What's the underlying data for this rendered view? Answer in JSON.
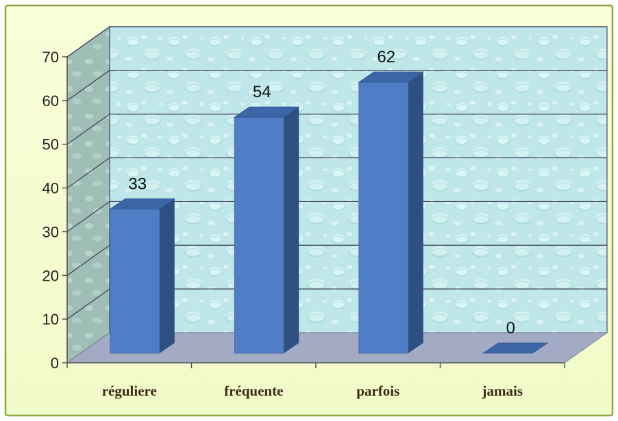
{
  "chart_data": {
    "type": "bar",
    "categories": [
      "réguliere",
      "fréquente",
      "parfois",
      "jamais"
    ],
    "values": [
      33,
      54,
      62,
      0
    ],
    "data_labels": [
      "33",
      "54",
      "62",
      "0"
    ],
    "title": "",
    "xlabel": "",
    "ylabel": "",
    "ylim": [
      0,
      70
    ],
    "yticks": [
      "0",
      "10",
      "20",
      "30",
      "40",
      "50",
      "60",
      "70"
    ],
    "grid": true,
    "legend": "none",
    "three_d": true
  },
  "colors": {
    "chart_area_bg": "#f6ffd6",
    "chart_area_border": "#8aa63a",
    "back_wall": "#bfe6e8",
    "side_wall": "#9fbfb6",
    "floor": "#a3aac4",
    "bar_front": "#4f7ec6",
    "bar_top": "#3b66a8",
    "bar_side": "#2e4f82",
    "gridline": "#3a3a55"
  }
}
